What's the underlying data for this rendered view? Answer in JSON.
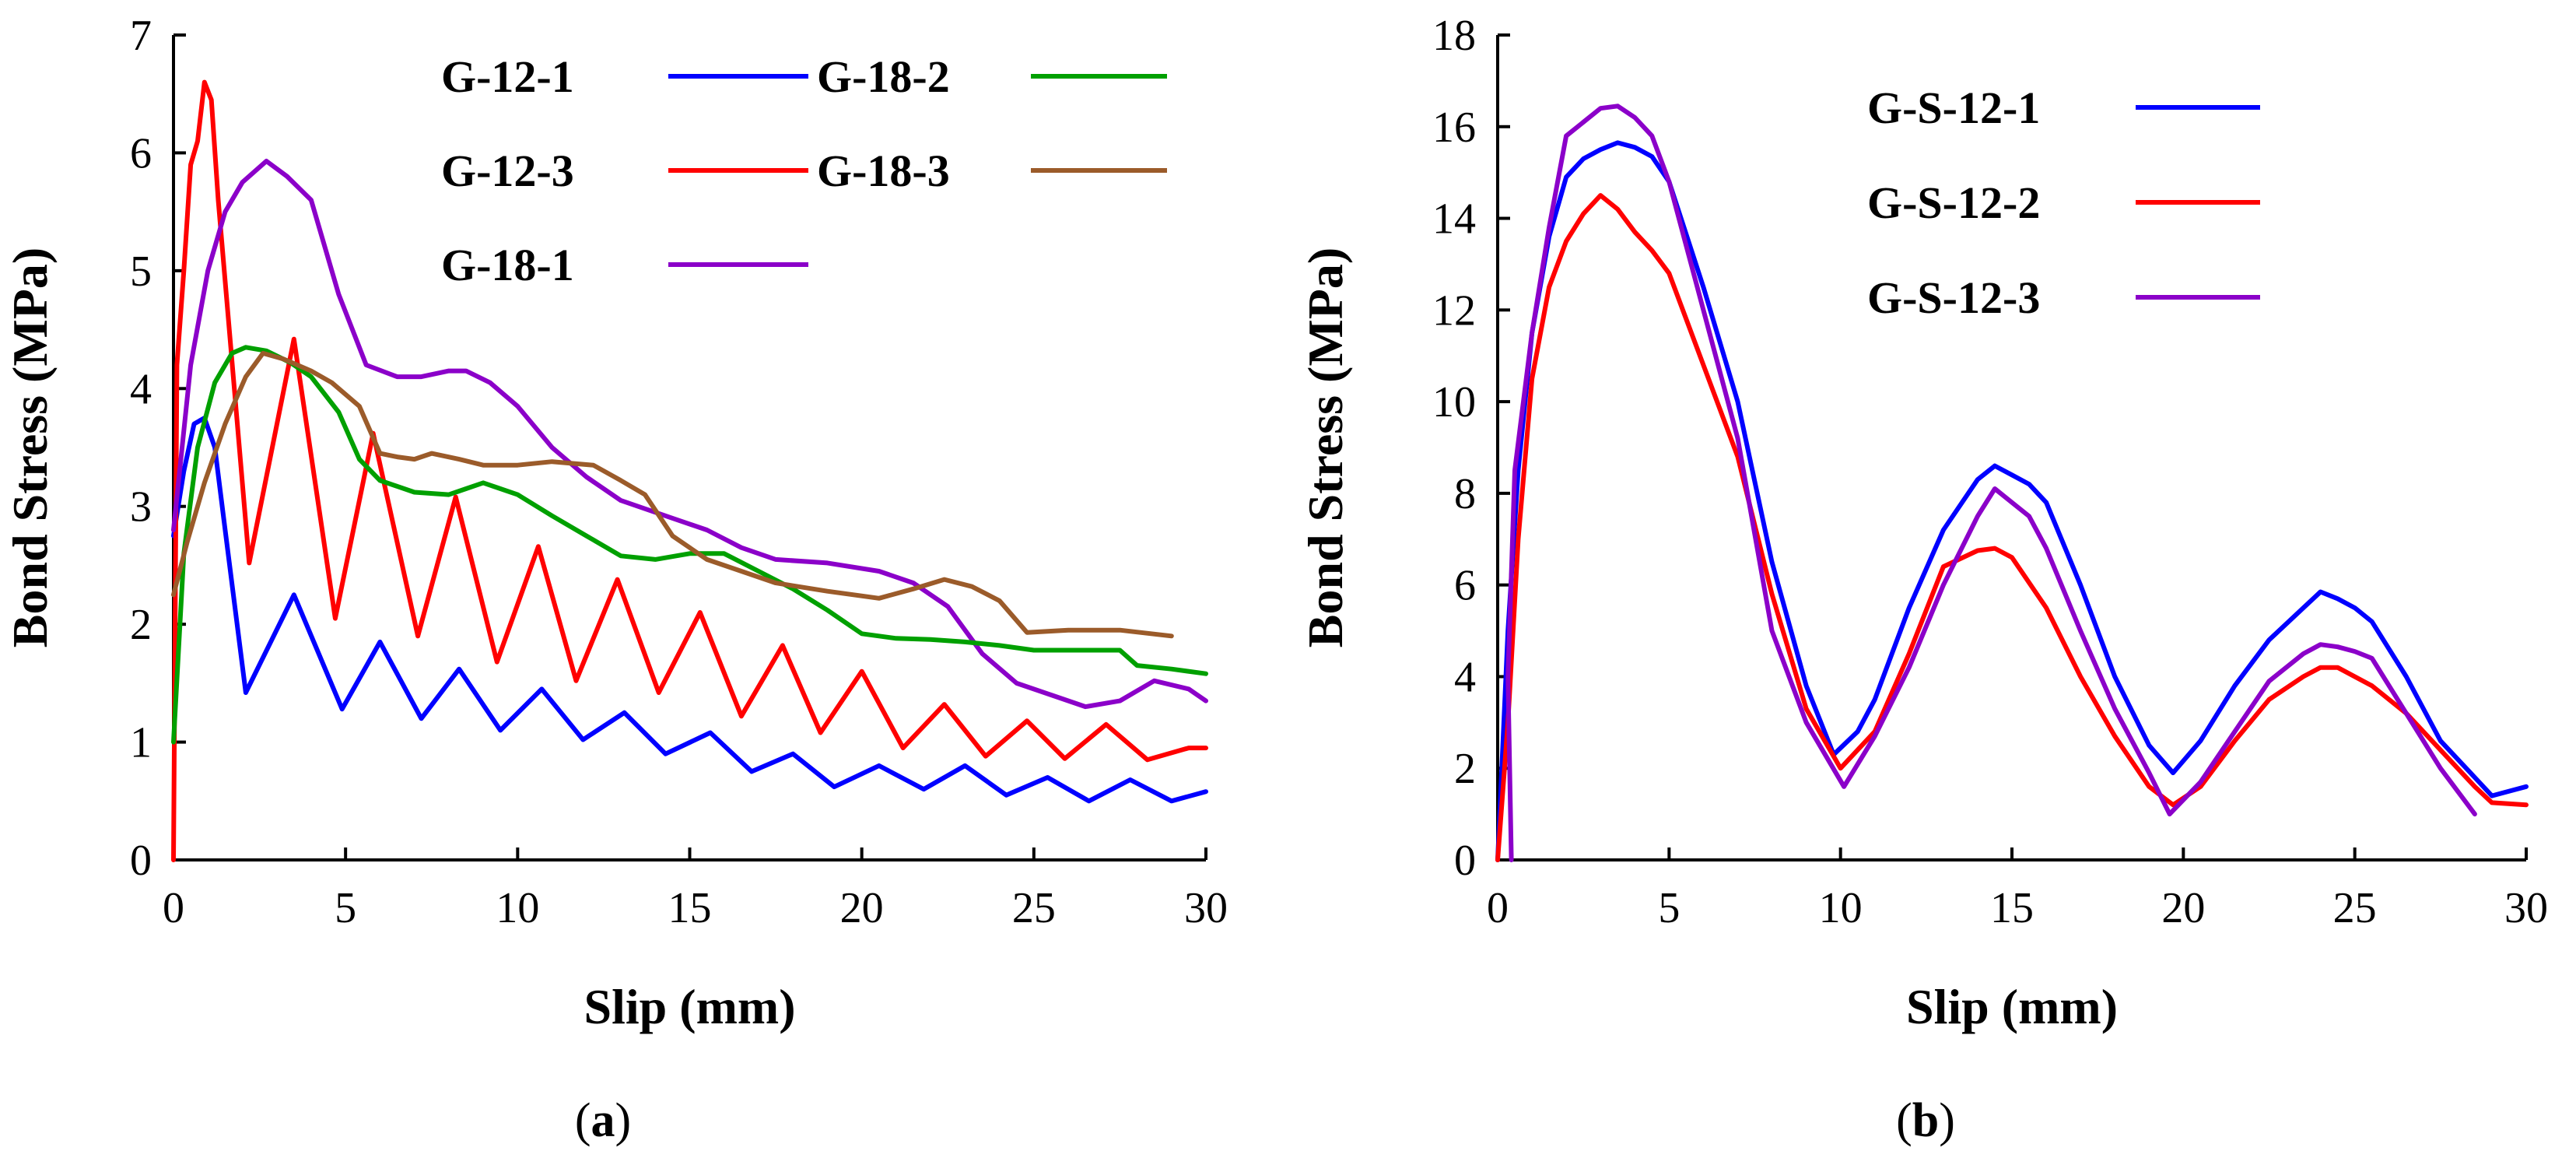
{
  "chart_data": [
    {
      "type": "line",
      "panel_label": "(a)",
      "panel_letter": "a",
      "xlabel": "Slip (mm)",
      "ylabel": "Bond Stress (MPa)",
      "xlim": [
        0,
        30
      ],
      "ylim": [
        0,
        7
      ],
      "xticks": [
        0,
        5,
        10,
        15,
        20,
        25,
        30
      ],
      "yticks": [
        0,
        1,
        2,
        3,
        4,
        5,
        6,
        7
      ],
      "grid": false,
      "legend_position": "top-right",
      "series": [
        {
          "name": "G-12-1",
          "color": "#0000ff",
          "x": [
            0,
            0.3,
            0.6,
            0.9,
            1.2,
            1.5,
            2.1,
            3.5,
            4.9,
            6.0,
            7.2,
            8.3,
            9.5,
            10.7,
            11.9,
            13.1,
            14.3,
            15.6,
            16.8,
            18.0,
            19.2,
            20.5,
            21.8,
            23.0,
            24.2,
            25.4,
            26.6,
            27.8,
            29.0,
            30
          ],
          "y": [
            2.75,
            3.3,
            3.7,
            3.75,
            3.5,
            2.8,
            1.42,
            2.25,
            1.28,
            1.85,
            1.2,
            1.62,
            1.1,
            1.45,
            1.02,
            1.25,
            0.9,
            1.08,
            0.75,
            0.9,
            0.62,
            0.8,
            0.6,
            0.8,
            0.55,
            0.7,
            0.5,
            0.68,
            0.5,
            0.58
          ]
        },
        {
          "name": "G-12-3",
          "color": "#ff0000",
          "x": [
            0,
            0.1,
            0.3,
            0.5,
            0.7,
            0.9,
            1.1,
            1.3,
            2.2,
            3.5,
            4.7,
            5.8,
            7.1,
            8.2,
            9.4,
            10.6,
            11.7,
            12.9,
            14.1,
            15.3,
            16.5,
            17.7,
            18.8,
            20.0,
            21.2,
            22.4,
            23.6,
            24.8,
            25.9,
            27.1,
            28.3,
            29.5,
            30
          ],
          "y": [
            0,
            4.2,
            5.0,
            5.9,
            6.1,
            6.6,
            6.45,
            5.6,
            2.52,
            4.42,
            2.05,
            3.62,
            1.9,
            3.08,
            1.68,
            2.66,
            1.52,
            2.38,
            1.42,
            2.1,
            1.22,
            1.82,
            1.08,
            1.6,
            0.95,
            1.32,
            0.88,
            1.18,
            0.86,
            1.15,
            0.85,
            0.95,
            0.95
          ]
        },
        {
          "name": "G-18-1",
          "color": "#8b00c9",
          "x": [
            0,
            0.5,
            1.0,
            1.5,
            2.0,
            2.7,
            3.3,
            4.0,
            4.8,
            5.6,
            6.5,
            7.2,
            8.0,
            8.5,
            9.2,
            10.0,
            11.0,
            12.0,
            13.0,
            14.5,
            15.5,
            16.5,
            17.5,
            19.0,
            20.5,
            21.5,
            22.5,
            23.5,
            24.5,
            25.5,
            26.5,
            27.5,
            28.5,
            29.5,
            30
          ],
          "y": [
            2.8,
            4.2,
            5.0,
            5.5,
            5.75,
            5.93,
            5.8,
            5.6,
            4.8,
            4.2,
            4.1,
            4.1,
            4.15,
            4.15,
            4.05,
            3.85,
            3.5,
            3.25,
            3.05,
            2.9,
            2.8,
            2.65,
            2.55,
            2.52,
            2.45,
            2.35,
            2.15,
            1.75,
            1.5,
            1.4,
            1.3,
            1.35,
            1.52,
            1.45,
            1.35
          ]
        },
        {
          "name": "G-18-2",
          "color": "#00a000",
          "x": [
            0,
            0.3,
            0.7,
            1.2,
            1.7,
            2.1,
            2.7,
            3.4,
            4.0,
            4.8,
            5.4,
            6.0,
            7.0,
            8.0,
            8.5,
            9.0,
            10.0,
            11.0,
            12.0,
            13.0,
            14.0,
            15.0,
            16.0,
            17.0,
            18.0,
            19.0,
            20.0,
            21.0,
            22.0,
            23.0,
            24.0,
            25.0,
            26.0,
            27.5,
            28.0,
            29.0,
            30
          ],
          "y": [
            1.0,
            2.6,
            3.5,
            4.05,
            4.3,
            4.35,
            4.32,
            4.22,
            4.1,
            3.8,
            3.4,
            3.22,
            3.12,
            3.1,
            3.15,
            3.2,
            3.1,
            2.92,
            2.75,
            2.58,
            2.55,
            2.6,
            2.6,
            2.45,
            2.3,
            2.12,
            1.92,
            1.88,
            1.87,
            1.85,
            1.82,
            1.78,
            1.78,
            1.78,
            1.65,
            1.62,
            1.58
          ]
        },
        {
          "name": "G-18-3",
          "color": "#9b5b2a",
          "x": [
            0,
            0.4,
            0.9,
            1.5,
            2.1,
            2.6,
            3.2,
            4.0,
            4.6,
            5.4,
            6.0,
            6.5,
            7.0,
            7.5,
            8.3,
            9.0,
            10.0,
            11.0,
            12.2,
            13.0,
            13.7,
            14.5,
            15.5,
            16.5,
            17.5,
            19.0,
            20.5,
            21.5,
            22.4,
            23.2,
            24.0,
            24.8,
            26.0,
            27.5,
            29.0
          ],
          "y": [
            2.25,
            2.7,
            3.2,
            3.7,
            4.1,
            4.3,
            4.25,
            4.15,
            4.05,
            3.85,
            3.45,
            3.42,
            3.4,
            3.45,
            3.4,
            3.35,
            3.35,
            3.38,
            3.35,
            3.22,
            3.1,
            2.75,
            2.55,
            2.45,
            2.35,
            2.28,
            2.22,
            2.3,
            2.38,
            2.32,
            2.2,
            1.93,
            1.95,
            1.95,
            1.9
          ]
        }
      ]
    },
    {
      "type": "line",
      "panel_label": "(b)",
      "panel_letter": "b",
      "xlabel": "Slip (mm)",
      "ylabel": "Bond Stress (MPa)",
      "xlim": [
        0,
        30
      ],
      "ylim": [
        0,
        18
      ],
      "xticks": [
        0,
        5,
        10,
        15,
        20,
        25,
        30
      ],
      "yticks": [
        0,
        2,
        4,
        6,
        8,
        10,
        12,
        14,
        16,
        18
      ],
      "grid": false,
      "legend_position": "top-right",
      "series": [
        {
          "name": "G-S-12-1",
          "color": "#0000ff",
          "x": [
            0,
            0.3,
            0.6,
            1.0,
            1.5,
            2.0,
            2.5,
            3.0,
            3.5,
            4.0,
            4.5,
            5.0,
            6.0,
            7.0,
            8.0,
            9.0,
            9.8,
            10.5,
            11.0,
            12.0,
            13.0,
            14.0,
            14.5,
            15.0,
            15.5,
            16.0,
            17.0,
            18.0,
            19.0,
            19.7,
            20.5,
            21.5,
            22.5,
            23.5,
            24.0,
            24.5,
            25.0,
            25.5,
            26.5,
            27.5,
            28.5,
            29.0,
            30
          ],
          "y": [
            0,
            5.0,
            8.5,
            11.5,
            13.6,
            14.9,
            15.3,
            15.5,
            15.65,
            15.55,
            15.35,
            14.8,
            12.5,
            10.0,
            6.5,
            3.8,
            2.3,
            2.8,
            3.5,
            5.5,
            7.2,
            8.3,
            8.6,
            8.4,
            8.2,
            7.8,
            6.0,
            4.0,
            2.5,
            1.9,
            2.6,
            3.8,
            4.8,
            5.5,
            5.85,
            5.7,
            5.5,
            5.2,
            4.0,
            2.6,
            1.8,
            1.4,
            1.6
          ]
        },
        {
          "name": "G-S-12-2",
          "color": "#ff0000",
          "x": [
            0,
            0.3,
            0.6,
            1.0,
            1.5,
            2.0,
            2.5,
            3.0,
            3.5,
            4.0,
            4.5,
            5.0,
            6.0,
            7.0,
            8.0,
            9.0,
            10.0,
            11.0,
            12.0,
            13.0,
            14.0,
            14.5,
            15.0,
            16.0,
            17.0,
            18.0,
            19.0,
            19.7,
            20.5,
            21.5,
            22.5,
            23.5,
            24.0,
            24.5,
            25.5,
            26.5,
            27.5,
            28.5,
            29.0,
            30
          ],
          "y": [
            0,
            3.0,
            7.0,
            10.5,
            12.5,
            13.5,
            14.1,
            14.5,
            14.2,
            13.7,
            13.3,
            12.8,
            10.8,
            8.8,
            5.8,
            3.3,
            2.0,
            2.8,
            4.5,
            6.4,
            6.75,
            6.8,
            6.6,
            5.5,
            4.0,
            2.7,
            1.6,
            1.2,
            1.6,
            2.6,
            3.5,
            4.0,
            4.2,
            4.2,
            3.8,
            3.2,
            2.4,
            1.6,
            1.25,
            1.2
          ]
        },
        {
          "name": "G-S-12-3",
          "color": "#8b00c9",
          "x": [
            0.4,
            0.3,
            0.5,
            1.0,
            1.5,
            2.0,
            2.5,
            3.0,
            3.5,
            4.0,
            4.5,
            5.0,
            6.0,
            7.0,
            8.0,
            9.0,
            10.1,
            11.0,
            12.0,
            13.0,
            14.0,
            14.5,
            15.0,
            15.5,
            16.0,
            17.0,
            18.0,
            19.0,
            19.6,
            20.5,
            21.5,
            22.5,
            23.5,
            24.0,
            24.5,
            25.0,
            25.5,
            26.5,
            27.5,
            28.5
          ],
          "y": [
            0,
            4.0,
            8.5,
            11.5,
            13.8,
            15.8,
            16.1,
            16.4,
            16.45,
            16.2,
            15.8,
            14.8,
            12.0,
            9.2,
            5.0,
            3.0,
            1.6,
            2.7,
            4.2,
            6.0,
            7.5,
            8.1,
            7.8,
            7.5,
            6.8,
            5.0,
            3.3,
            1.9,
            1.0,
            1.7,
            2.8,
            3.9,
            4.5,
            4.7,
            4.65,
            4.55,
            4.4,
            3.2,
            2.0,
            1.0
          ]
        }
      ]
    }
  ]
}
